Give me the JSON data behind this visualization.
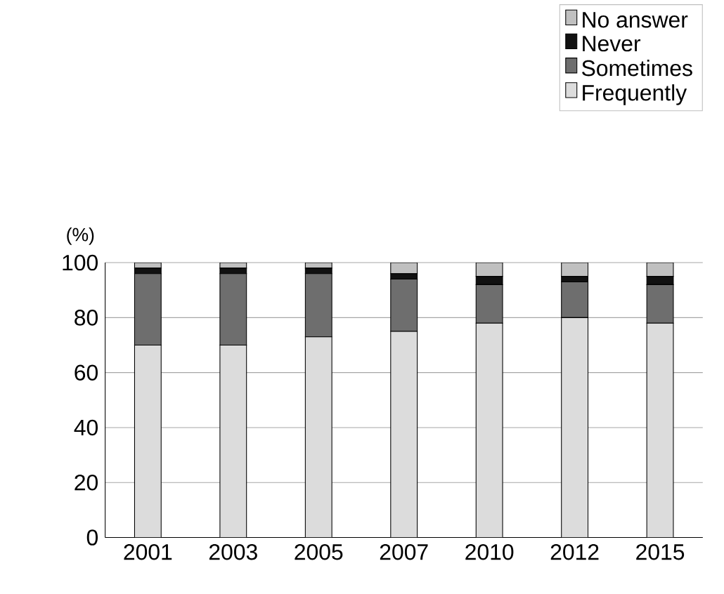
{
  "chart_data": {
    "type": "bar",
    "stacked": true,
    "ylabel": "(%)",
    "categories": [
      "2001",
      "2003",
      "2005",
      "2007",
      "2010",
      "2012",
      "2015"
    ],
    "series": [
      {
        "name": "Frequently",
        "color": "#dcdcdc",
        "values": [
          70,
          70,
          73,
          75,
          78,
          80,
          78
        ]
      },
      {
        "name": "Sometimes",
        "color": "#6e6e6e",
        "values": [
          26,
          26,
          23,
          19,
          14,
          13,
          14
        ]
      },
      {
        "name": "Never",
        "color": "#111111",
        "values": [
          2,
          2,
          2,
          2,
          3,
          2,
          3
        ]
      },
      {
        "name": "No answer",
        "color": "#c0c0c0",
        "values": [
          2,
          2,
          2,
          4,
          5,
          5,
          5
        ]
      }
    ],
    "ylim": [
      0,
      100
    ],
    "yticks": [
      0,
      20,
      40,
      60,
      80,
      100
    ],
    "grid": "y",
    "legend": "top right"
  }
}
